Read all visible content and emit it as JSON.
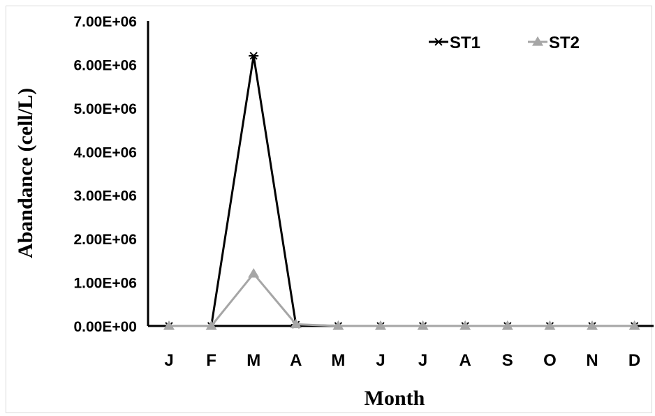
{
  "chart_data": {
    "type": "line",
    "xlabel": "Month",
    "ylabel": "Abandance (cell/L)",
    "categories": [
      "J",
      "F",
      "M",
      "A",
      "M",
      "J",
      "J",
      "A",
      "S",
      "O",
      "N",
      "D"
    ],
    "yticks": [
      "0.00E+00",
      "1.00E+06",
      "2.00E+06",
      "3.00E+06",
      "4.00E+06",
      "5.00E+06",
      "6.00E+06",
      "7.00E+06"
    ],
    "ylim": [
      0,
      7000000
    ],
    "grid": false,
    "legend_position": "top-right",
    "series": [
      {
        "name": "ST1",
        "marker": "asterisk",
        "color": "#000000",
        "values": [
          0,
          0,
          6200000,
          30000,
          0,
          0,
          0,
          0,
          0,
          0,
          0,
          0
        ]
      },
      {
        "name": "ST2",
        "marker": "triangle",
        "color": "#a6a6a6",
        "values": [
          0,
          0,
          1200000,
          40000,
          0,
          0,
          0,
          0,
          0,
          0,
          0,
          0
        ]
      }
    ]
  }
}
